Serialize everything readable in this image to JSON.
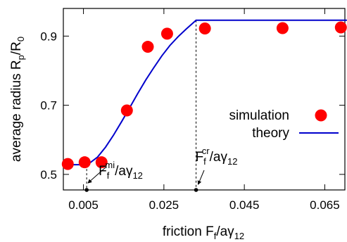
{
  "chart_data": {
    "type": "scatter",
    "xlabel": "friction F_f/aγ_12",
    "ylabel": "average radius R_p/R_0",
    "xlim": [
      0.0,
      0.07
    ],
    "ylim": [
      0.455,
      0.98
    ],
    "xticks": [
      0.005,
      0.025,
      0.045,
      0.065
    ],
    "xtick_labels": [
      "0.005",
      "0.025",
      "0.045",
      "0.065"
    ],
    "yticks": [
      0.5,
      0.7,
      0.9
    ],
    "ytick_labels": [
      "0.5",
      "0.7",
      "0.9"
    ],
    "grid": false,
    "legend_position": "center-right",
    "series": [
      {
        "name": "simulation",
        "kind": "points",
        "color": "#ff0000",
        "x": [
          0.0011,
          0.0053,
          0.0095,
          0.0158,
          0.021,
          0.0258,
          0.0352,
          0.0545,
          0.069
        ],
        "y": [
          0.53,
          0.535,
          0.535,
          0.685,
          0.869,
          0.907,
          0.922,
          0.923,
          0.925
        ]
      },
      {
        "name": "theory",
        "kind": "line",
        "color": "#0000cc",
        "x": [
          0.0,
          0.0058,
          0.0068,
          0.0085,
          0.0105,
          0.0125,
          0.0145,
          0.0165,
          0.0185,
          0.0205,
          0.0225,
          0.0245,
          0.0265,
          0.0285,
          0.0305,
          0.033,
          0.0705
        ],
        "y": [
          0.528,
          0.528,
          0.535,
          0.55,
          0.579,
          0.614,
          0.653,
          0.693,
          0.734,
          0.773,
          0.809,
          0.843,
          0.873,
          0.898,
          0.92,
          0.946,
          0.946
        ]
      }
    ],
    "annotations": [
      {
        "id": "mi",
        "x": 0.0058,
        "y_top": 0.528,
        "base": "F",
        "base_sub": "f",
        "sup": "mi",
        "rest": "/aγ",
        "rest_sub": "12"
      },
      {
        "id": "cr",
        "x": 0.033,
        "y_top": 0.946,
        "base": "F",
        "base_sub": "f",
        "sup": "cr",
        "rest": "/aγ",
        "rest_sub": "12"
      }
    ]
  }
}
